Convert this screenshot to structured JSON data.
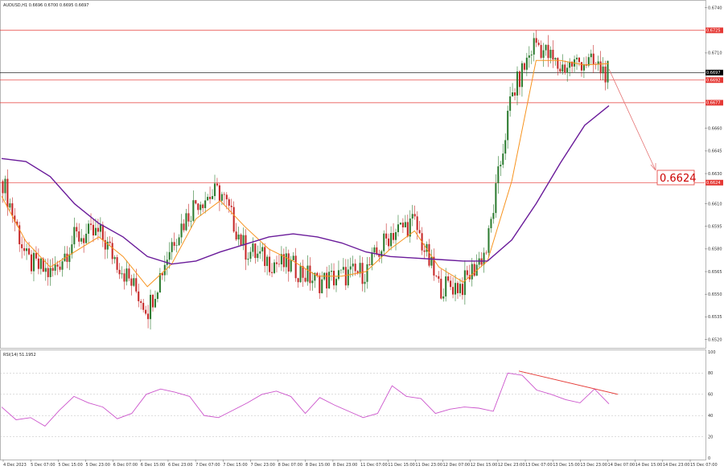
{
  "header": {
    "symbol_line": "AUDUSD,H1  0.6696 0.6700 0.6695 0.6697",
    "rsi_label": "RSI(14) 51.1952"
  },
  "chart_data": [
    {
      "type": "line",
      "title": "",
      "series": [
        {
          "name": "",
          "role": "close",
          "color": "#000000",
          "x": [
            "4 Dec 2023",
            "5 Dec 07:00",
            "5 Dec 15:00",
            "5 Dec 23:00",
            "6 Dec 07:00",
            "6 Dec 15:00",
            "6 Dec 23:00",
            "7 Dec 07:00",
            "7 Dec 15:00",
            "7 Dec 23:00",
            "8 Dec 07:00",
            "8 Dec 15:00",
            "8 Dec 23:00",
            "11 Dec 07:00",
            "11 Dec 15:00",
            "11 Dec 23:00",
            "12 Dec 07:00",
            "12 Dec 15:00",
            "12 Dec 23:00",
            "13 Dec 07:00",
            "13 Dec 15:00",
            "13 Dec 23:00",
            "14 Dec 07:00",
            "14 Dec 15:00",
            "14 Dec 23:00",
            "15 Dec 07:00"
          ],
          "values": [
            0.6625,
            0.6572,
            0.6563,
            0.6588,
            0.659,
            0.6565,
            0.654,
            0.6585,
            0.6612,
            0.6618,
            0.658,
            0.6572,
            0.6568,
            0.6558,
            0.6562,
            0.6565,
            0.659,
            0.6598,
            0.6555,
            0.6556,
            0.658,
            0.668,
            0.6718,
            0.67,
            0.6705,
            0.6697
          ]
        },
        {
          "name": "",
          "role": "fast-ma",
          "color": "#f7931e",
          "values": [
            0.6615,
            0.6585,
            0.6568,
            0.6578,
            0.6588,
            0.6575,
            0.6555,
            0.657,
            0.66,
            0.6612,
            0.6595,
            0.658,
            0.6572,
            0.6562,
            0.6562,
            0.6565,
            0.658,
            0.6592,
            0.6568,
            0.6558,
            0.6572,
            0.6625,
            0.6705,
            0.6705,
            0.6702,
            0.6703
          ]
        },
        {
          "name": "",
          "role": "slow-ma",
          "color": "#6a1b9a",
          "values": [
            0.664,
            0.6638,
            0.6628,
            0.661,
            0.6597,
            0.6588,
            0.6575,
            0.657,
            0.6572,
            0.6578,
            0.6583,
            0.6588,
            0.659,
            0.6588,
            0.6584,
            0.6578,
            0.6575,
            0.6574,
            0.6573,
            0.6572,
            0.6572,
            0.6586,
            0.661,
            0.6637,
            0.6662,
            0.6675
          ]
        }
      ],
      "horizontal_levels": [
        0.6725,
        0.6697,
        0.6692,
        0.6677,
        0.6624
      ],
      "current_price": 0.6697,
      "target_label": "0.6624",
      "y_ticks": [
        "0.6740",
        "0.6725",
        "0.6710",
        "0.6697",
        "0.6692",
        "0.6677",
        "0.6660",
        "0.6645",
        "0.6630",
        "0.6624",
        "0.6610",
        "0.6595",
        "0.6580",
        "0.6565",
        "0.6550",
        "0.6535",
        "0.6520"
      ],
      "ylim": [
        0.6516,
        0.6743
      ],
      "x_ticks": [
        "4 Dec 2023",
        "5 Dec 07:00",
        "5 Dec 15:00",
        "5 Dec 23:00",
        "6 Dec 07:00",
        "6 Dec 15:00",
        "6 Dec 23:00",
        "7 Dec 07:00",
        "7 Dec 15:00",
        "7 Dec 23:00",
        "8 Dec 07:00",
        "8 Dec 15:00",
        "8 Dec 23:00",
        "11 Dec 07:00",
        "11 Dec 15:00",
        "11 Dec 23:00",
        "12 Dec 07:00",
        "12 Dec 15:00",
        "12 Dec 23:00",
        "13 Dec 07:00",
        "13 Dec 15:00",
        "13 Dec 23:00",
        "14 Dec 07:00",
        "14 Dec 15:00",
        "14 Dec 23:00",
        "15 Dec 07:00"
      ],
      "grid": false
    },
    {
      "type": "line",
      "title": "RSI(14) 51.1952",
      "series": [
        {
          "name": "",
          "color": "#cc55cc",
          "values": [
            48,
            36,
            38,
            30,
            45,
            58,
            52,
            48,
            37,
            42,
            60,
            65,
            62,
            58,
            40,
            38,
            45,
            52,
            60,
            63,
            58,
            42,
            57,
            50,
            44,
            38,
            42,
            68,
            58,
            56,
            42,
            46,
            48,
            47,
            44,
            80,
            78,
            64,
            60,
            55,
            52,
            65,
            51
          ]
        }
      ],
      "ylim": [
        0,
        100
      ],
      "y_ticks": [
        "100",
        "80",
        "60",
        "40",
        "20",
        "0"
      ],
      "levels": [
        80,
        60,
        40,
        20
      ]
    }
  ],
  "colors": {
    "bull": "#2e7d32",
    "bear": "#c62828",
    "level": "#e53935",
    "current": "#000000"
  }
}
